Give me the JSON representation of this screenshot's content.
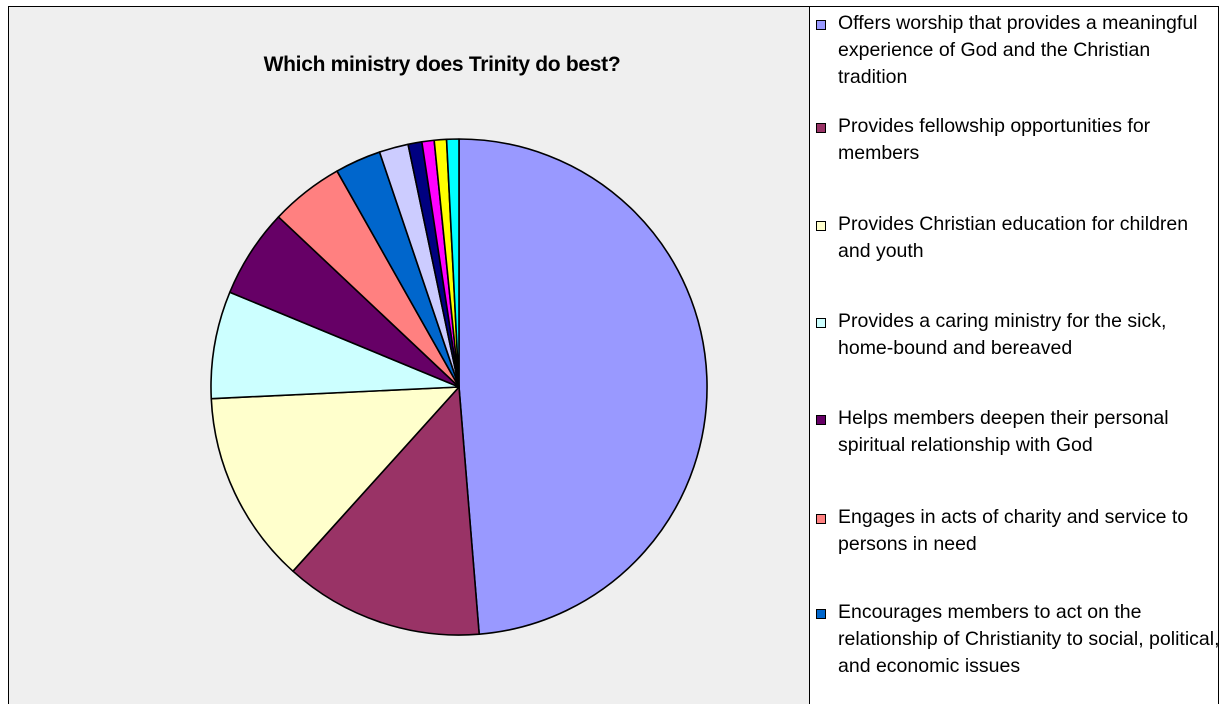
{
  "chart_data": {
    "type": "pie",
    "title": "Which ministry does Trinity do best?",
    "categories": [
      "Offers worship that provides a meaningful experience of God and the Christian tradition",
      "Provides fellowship opportunities for members",
      "Provides Christian education for children and youth",
      "Provides a caring ministry for the sick, home-bound and bereaved",
      "Helps members deepen their personal spiritual relationship with God",
      "Engages in acts of charity and service to persons in need",
      "Encourages members to act on the relationship of Christianity to social, political, and economic issues",
      "",
      "",
      "",
      "",
      ""
    ],
    "values": [
      48.8,
      13.0,
      12.6,
      7.0,
      5.8,
      4.8,
      3.0,
      1.9,
      0.9,
      0.8,
      0.8,
      0.8
    ],
    "colors": [
      "#9999ff",
      "#993366",
      "#ffffcc",
      "#ccffff",
      "#660066",
      "#ff8080",
      "#0066cc",
      "#ccccff",
      "#000080",
      "#ff00ff",
      "#ffff00",
      "#00ffff"
    ],
    "legend_position": "right",
    "start_angle": "top, clockwise"
  }
}
